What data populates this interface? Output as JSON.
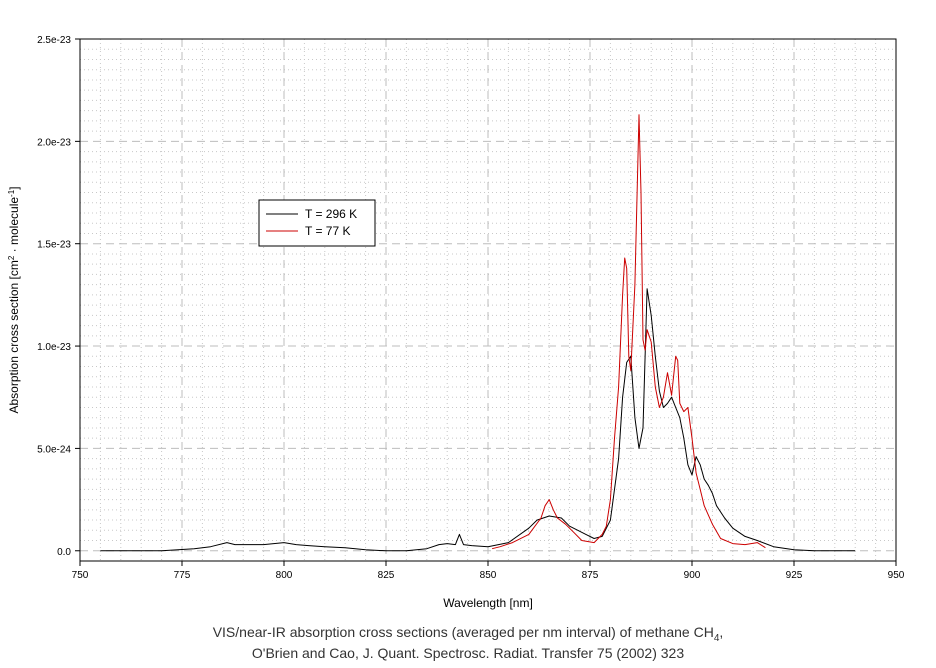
{
  "chart_data": {
    "type": "line",
    "xlabel": "Wavelength [nm]",
    "ylabel_parts": [
      "Absorption cross section [cm",
      "2",
      " · molecule",
      "-1",
      "]"
    ],
    "xlim": [
      750,
      950
    ],
    "ylim": [
      -5e-25,
      2.5e-23
    ],
    "x_ticks": [
      {
        "value": 750,
        "label": "750"
      },
      {
        "value": 775,
        "label": "775"
      },
      {
        "value": 800,
        "label": "800"
      },
      {
        "value": 825,
        "label": "825"
      },
      {
        "value": 850,
        "label": "850"
      },
      {
        "value": 875,
        "label": "875"
      },
      {
        "value": 900,
        "label": "900"
      },
      {
        "value": 925,
        "label": "925"
      },
      {
        "value": 950,
        "label": "950"
      }
    ],
    "y_ticks": [
      {
        "value": 0,
        "label": "0.0"
      },
      {
        "value": 5e-24,
        "label": "5.0e-24"
      },
      {
        "value": 1e-23,
        "label": "1.0e-23"
      },
      {
        "value": 1.5e-23,
        "label": "1.5e-23"
      },
      {
        "value": 2e-23,
        "label": "2.0e-23"
      },
      {
        "value": 2.5e-23,
        "label": "2.5e-23"
      }
    ],
    "grid": true,
    "legend_placement": "upper-left",
    "series": [
      {
        "name": "T = 296 K",
        "color": "#000000",
        "x": [
          755,
          770,
          778,
          782,
          786,
          788,
          790,
          795,
          800,
          803,
          806,
          810,
          815,
          820,
          825,
          830,
          835,
          838,
          840,
          842,
          843,
          844,
          846,
          850,
          855,
          860,
          862,
          865,
          868,
          870,
          872,
          874,
          876,
          878,
          880,
          882,
          883,
          884,
          885,
          886,
          887,
          888,
          889,
          890,
          891,
          892,
          893,
          894,
          895,
          896,
          897,
          898,
          899,
          900,
          901,
          902,
          903,
          904,
          905,
          906,
          908,
          910,
          913,
          916,
          920,
          925,
          930,
          935,
          940
        ],
        "y": [
          0,
          0,
          1e-25,
          2e-25,
          4e-25,
          3e-25,
          3e-25,
          3e-25,
          4e-25,
          3e-25,
          2.5e-25,
          2e-25,
          1.5e-25,
          5e-26,
          0,
          0,
          1e-25,
          3e-25,
          3.5e-25,
          3e-25,
          8e-25,
          3e-25,
          2.5e-25,
          2e-25,
          4e-25,
          1.1e-24,
          1.5e-24,
          1.7e-24,
          1.6e-24,
          1.2e-24,
          1e-24,
          8e-25,
          6e-25,
          7e-25,
          1.5e-24,
          4.5e-24,
          7.5e-24,
          9.2e-24,
          9.5e-24,
          6.5e-24,
          5e-24,
          6e-24,
          1.28e-23,
          1.15e-23,
          9.5e-24,
          7.8e-24,
          7e-24,
          7.2e-24,
          7.5e-24,
          7e-24,
          6.5e-24,
          5.5e-24,
          4.2e-24,
          3.7e-24,
          4.6e-24,
          4.2e-24,
          3.5e-24,
          3.2e-24,
          2.8e-24,
          2.2e-24,
          1.6e-24,
          1.1e-24,
          7e-25,
          5e-25,
          2e-25,
          5e-26,
          0,
          0,
          0
        ]
      },
      {
        "name": "T = 77 K",
        "color": "#cc0000",
        "x": [
          851,
          853,
          856,
          860,
          863,
          864,
          865,
          866,
          867,
          869,
          871,
          873,
          876,
          878,
          879,
          880,
          881,
          882,
          883,
          883.5,
          884,
          884.5,
          885,
          886,
          887,
          887.5,
          888,
          888.5,
          889,
          890,
          891,
          892,
          893,
          894,
          895,
          896,
          896.5,
          897,
          898,
          899,
          900,
          901,
          902,
          903,
          905,
          907,
          910,
          913,
          916,
          918
        ],
        "y": [
          1e-25,
          2e-25,
          4e-25,
          8e-25,
          1.6e-24,
          2.2e-24,
          2.5e-24,
          2e-24,
          1.6e-24,
          1.3e-24,
          9e-25,
          5e-25,
          4e-25,
          8e-25,
          1.2e-24,
          2.5e-24,
          5.5e-24,
          8e-24,
          1.25e-23,
          1.43e-23,
          1.38e-23,
          9.5e-24,
          8.8e-24,
          1.3e-23,
          2.13e-23,
          1.75e-23,
          1.03e-23,
          9.8e-24,
          1.08e-23,
          1.02e-23,
          8e-24,
          7e-24,
          7.5e-24,
          8.7e-24,
          7.6e-24,
          9.5e-24,
          9.3e-24,
          7.2e-24,
          6.8e-24,
          7e-24,
          5.5e-24,
          3.8e-24,
          3e-24,
          2.2e-24,
          1.3e-24,
          6e-25,
          3.5e-25,
          3e-25,
          4e-25,
          1.5e-25
        ]
      }
    ]
  },
  "caption": {
    "line1_a": "VIS/near-IR absorption cross sections (averaged per nm interval) of methane CH",
    "line1_sub": "4",
    "line1_b": ",",
    "line2": "O'Brien and Cao, J. Quant. Spectrosc. Radiat. Transfer 75 (2002) 323"
  }
}
